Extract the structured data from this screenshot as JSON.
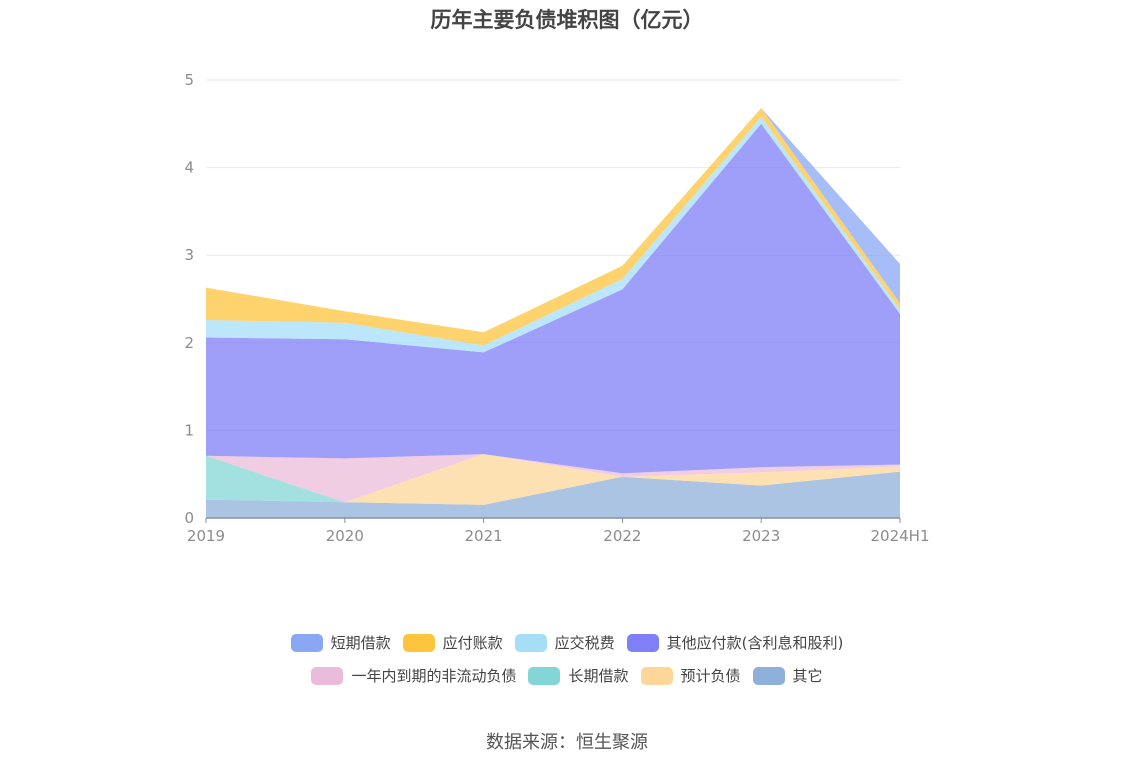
{
  "chart_data": {
    "type": "area",
    "stacked": true,
    "title": "历年主要负债堆积图（亿元）",
    "xlabel": "",
    "ylabel": "",
    "categories": [
      "2019",
      "2020",
      "2021",
      "2022",
      "2023",
      "2024H1"
    ],
    "ylim": [
      0,
      5
    ],
    "yticks": [
      0,
      1,
      2,
      3,
      4,
      5
    ],
    "grid": true,
    "legend_position": "bottom",
    "series": [
      {
        "name": "其它",
        "color": "#8fb0db",
        "values": [
          0.21,
          0.18,
          0.15,
          0.47,
          0.37,
          0.53
        ]
      },
      {
        "name": "预计负债",
        "color": "#fdd79a",
        "values": [
          0.0,
          0.0,
          0.58,
          0.0,
          0.15,
          0.06
        ]
      },
      {
        "name": "长期借款",
        "color": "#84d5d5",
        "values": [
          0.5,
          0.0,
          0.0,
          0.0,
          0.0,
          0.0
        ]
      },
      {
        "name": "一年内到期的非流动负债",
        "color": "#ebbcd9",
        "values": [
          0.0,
          0.5,
          0.0,
          0.04,
          0.06,
          0.02
        ]
      },
      {
        "name": "其他应付款(含利息和股利)",
        "color": "#7f7ff7",
        "values": [
          1.35,
          1.36,
          1.16,
          2.1,
          3.92,
          1.72
        ]
      },
      {
        "name": "应交税费",
        "color": "#a6def8",
        "values": [
          0.2,
          0.19,
          0.08,
          0.12,
          0.08,
          0.05
        ]
      },
      {
        "name": "应付账款",
        "color": "#fdc43d",
        "values": [
          0.37,
          0.13,
          0.15,
          0.15,
          0.1,
          0.07
        ]
      },
      {
        "name": "短期借款",
        "color": "#8aa7f4",
        "values": [
          0.0,
          0.0,
          0.0,
          0.0,
          0.0,
          0.45
        ]
      }
    ]
  },
  "legend": {
    "rows": [
      [
        {
          "label": "短期借款",
          "color": "#8aa7f4"
        },
        {
          "label": "应付账款",
          "color": "#fdc43d"
        },
        {
          "label": "应交税费",
          "color": "#a6def8"
        },
        {
          "label": "其他应付款(含利息和股利)",
          "color": "#7f7ff7"
        }
      ],
      [
        {
          "label": "一年内到期的非流动负债",
          "color": "#ebbcd9"
        },
        {
          "label": "长期借款",
          "color": "#84d5d5"
        },
        {
          "label": "预计负债",
          "color": "#fdd79a"
        },
        {
          "label": "其它",
          "color": "#8fb0db"
        }
      ]
    ]
  },
  "source": "数据来源：恒生聚源"
}
